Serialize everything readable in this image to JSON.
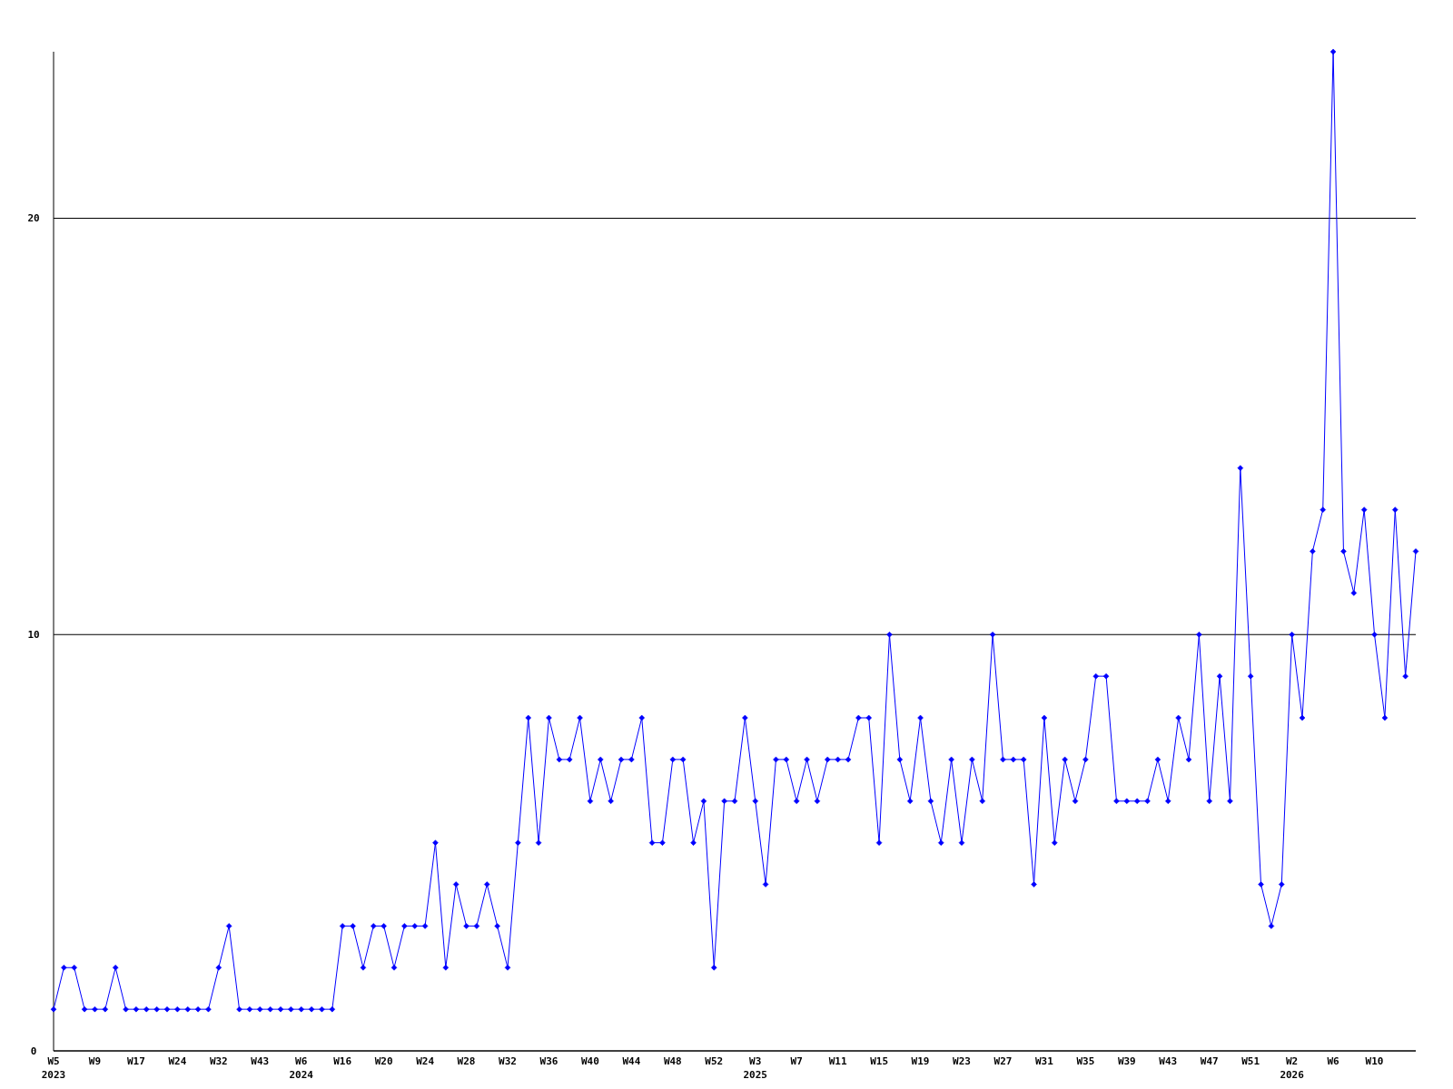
{
  "chart_data": {
    "type": "line",
    "categories": [
      "W5\n2023",
      null,
      null,
      null,
      "W9",
      null,
      null,
      null,
      "W17",
      null,
      null,
      null,
      "W24",
      null,
      null,
      null,
      "W32",
      null,
      null,
      null,
      "W43",
      null,
      null,
      null,
      "W6\n2024",
      null,
      null,
      null,
      "W16",
      null,
      null,
      null,
      "W20",
      null,
      null,
      null,
      "W24",
      null,
      null,
      null,
      "W28",
      null,
      null,
      null,
      "W32",
      null,
      null,
      null,
      "W36",
      null,
      null,
      null,
      "W40",
      null,
      null,
      null,
      "W44",
      null,
      null,
      null,
      "W48",
      null,
      null,
      null,
      "W52",
      null,
      null,
      null,
      "W3\n2025",
      null,
      null,
      null,
      "W7",
      null,
      null,
      null,
      "W11",
      null,
      null,
      null,
      "W15",
      null,
      null,
      null,
      "W19",
      null,
      null,
      null,
      "W23",
      null,
      null,
      null,
      "W27",
      null,
      null,
      null,
      "W31",
      null,
      null,
      null,
      "W35",
      null,
      null,
      null,
      "W39",
      null,
      null,
      null,
      "W43",
      null,
      null,
      null,
      "W47",
      null,
      null,
      null,
      "W51",
      null,
      null,
      null,
      "W2\n2026",
      null,
      null,
      null,
      "W6",
      null,
      null,
      null,
      "W10",
      null,
      null,
      null,
      null
    ],
    "series": [
      {
        "color": "#0000ff",
        "values": [
          1,
          2,
          2,
          1,
          1,
          1,
          2,
          1,
          1,
          1,
          1,
          1,
          1,
          1,
          1,
          1,
          2,
          3,
          1,
          1,
          1,
          1,
          1,
          1,
          1,
          1,
          1,
          1,
          3,
          3,
          2,
          3,
          3,
          2,
          3,
          3,
          3,
          5,
          2,
          4,
          3,
          3,
          4,
          3,
          2,
          5,
          8,
          5,
          8,
          7,
          7,
          8,
          6,
          7,
          6,
          7,
          7,
          8,
          5,
          5,
          7,
          7,
          5,
          6,
          2,
          6,
          6,
          8,
          6,
          4,
          7,
          7,
          6,
          7,
          6,
          7,
          7,
          7,
          8,
          8,
          5,
          10,
          7,
          6,
          8,
          6,
          5,
          7,
          5,
          7,
          6,
          10,
          7,
          7,
          7,
          4,
          8,
          5,
          7,
          6,
          7,
          9,
          9,
          6,
          6,
          6,
          6,
          7,
          6,
          8,
          7,
          10,
          6,
          9,
          6,
          14,
          9,
          4,
          3,
          4,
          10,
          8,
          12,
          13,
          24,
          12,
          11,
          13,
          10,
          8,
          13,
          9,
          12
        ]
      }
    ],
    "ylim": [
      0,
      24
    ],
    "yticks": [
      0,
      10,
      20
    ],
    "grid": "y",
    "marker": "diamond",
    "line_style": "solid"
  }
}
